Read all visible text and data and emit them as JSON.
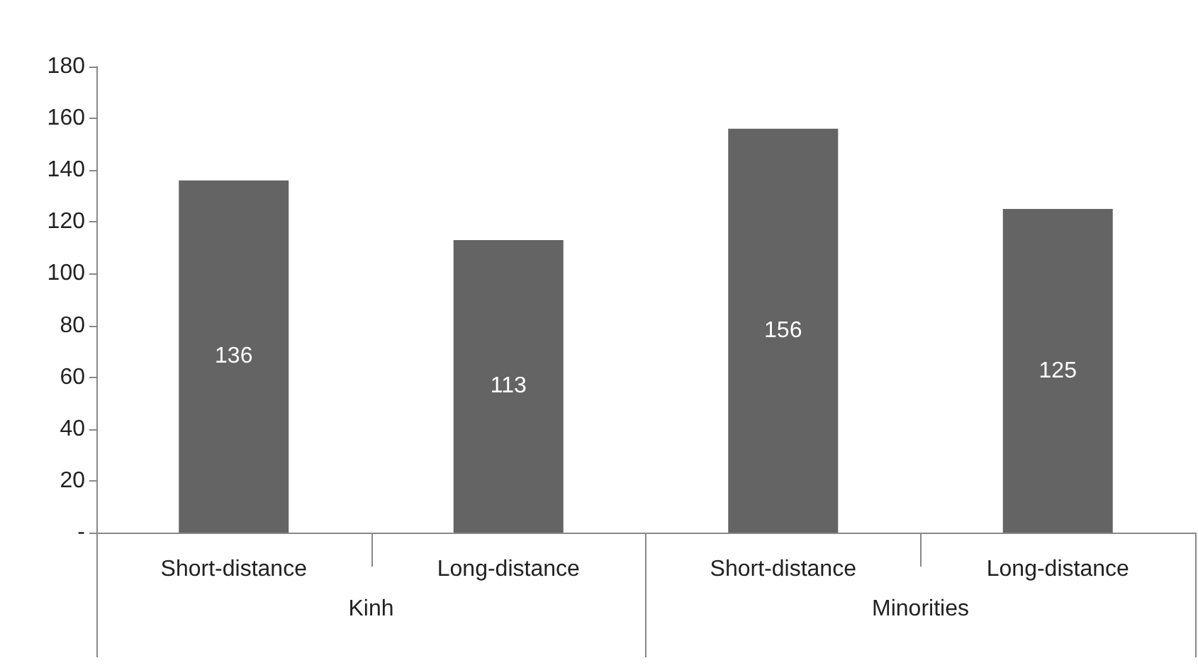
{
  "chart_data": {
    "type": "bar",
    "categories": [
      "Short-distance",
      "Long-distance",
      "Short-distance",
      "Long-distance"
    ],
    "values": [
      136,
      113,
      156,
      125
    ],
    "color": "#646464",
    "ylim": [
      0,
      180
    ],
    "yticks": [
      {
        "value": 0,
        "label": "-"
      },
      20,
      40,
      60,
      80,
      100,
      120,
      140,
      160,
      180
    ],
    "data_labels": true,
    "annotations": [
      "Kinh",
      "Minorities"
    ]
  }
}
